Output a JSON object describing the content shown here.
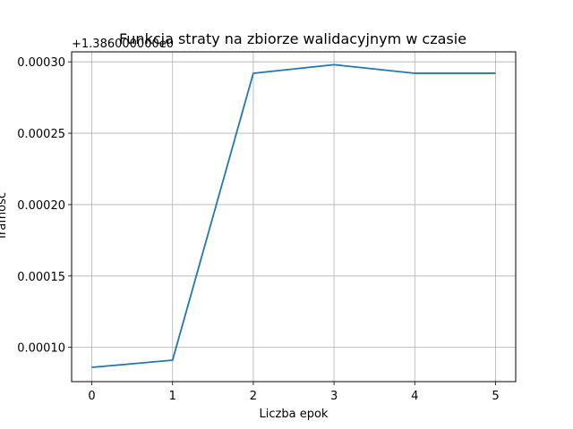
{
  "chart_data": {
    "type": "line",
    "title": "Funkcja straty na zbiorze walidacyjnym w czasie",
    "xlabel": "Liczba epok",
    "ylabel": "Trafność",
    "y_offset_label": "+1.386000000e0",
    "x": [
      0,
      1,
      2,
      3,
      4,
      5
    ],
    "series": [
      {
        "values": [
          8.6e-05,
          9.1e-05,
          0.000292,
          0.000298,
          0.000292,
          0.000292
        ],
        "color": "#1f77b4"
      }
    ],
    "xlim": [
      -0.25,
      5.25
    ],
    "ylim": [
      7.6e-05,
      0.000307
    ],
    "x_ticks": [
      0,
      1,
      2,
      3,
      4,
      5
    ],
    "x_tick_labels": [
      "0",
      "1",
      "2",
      "3",
      "4",
      "5"
    ],
    "y_ticks": [
      0.0001,
      0.00015,
      0.0002,
      0.00025,
      0.0003
    ],
    "y_tick_labels": [
      "0.00010",
      "0.00015",
      "0.00020",
      "0.00025",
      "0.00030"
    ],
    "grid": true
  }
}
